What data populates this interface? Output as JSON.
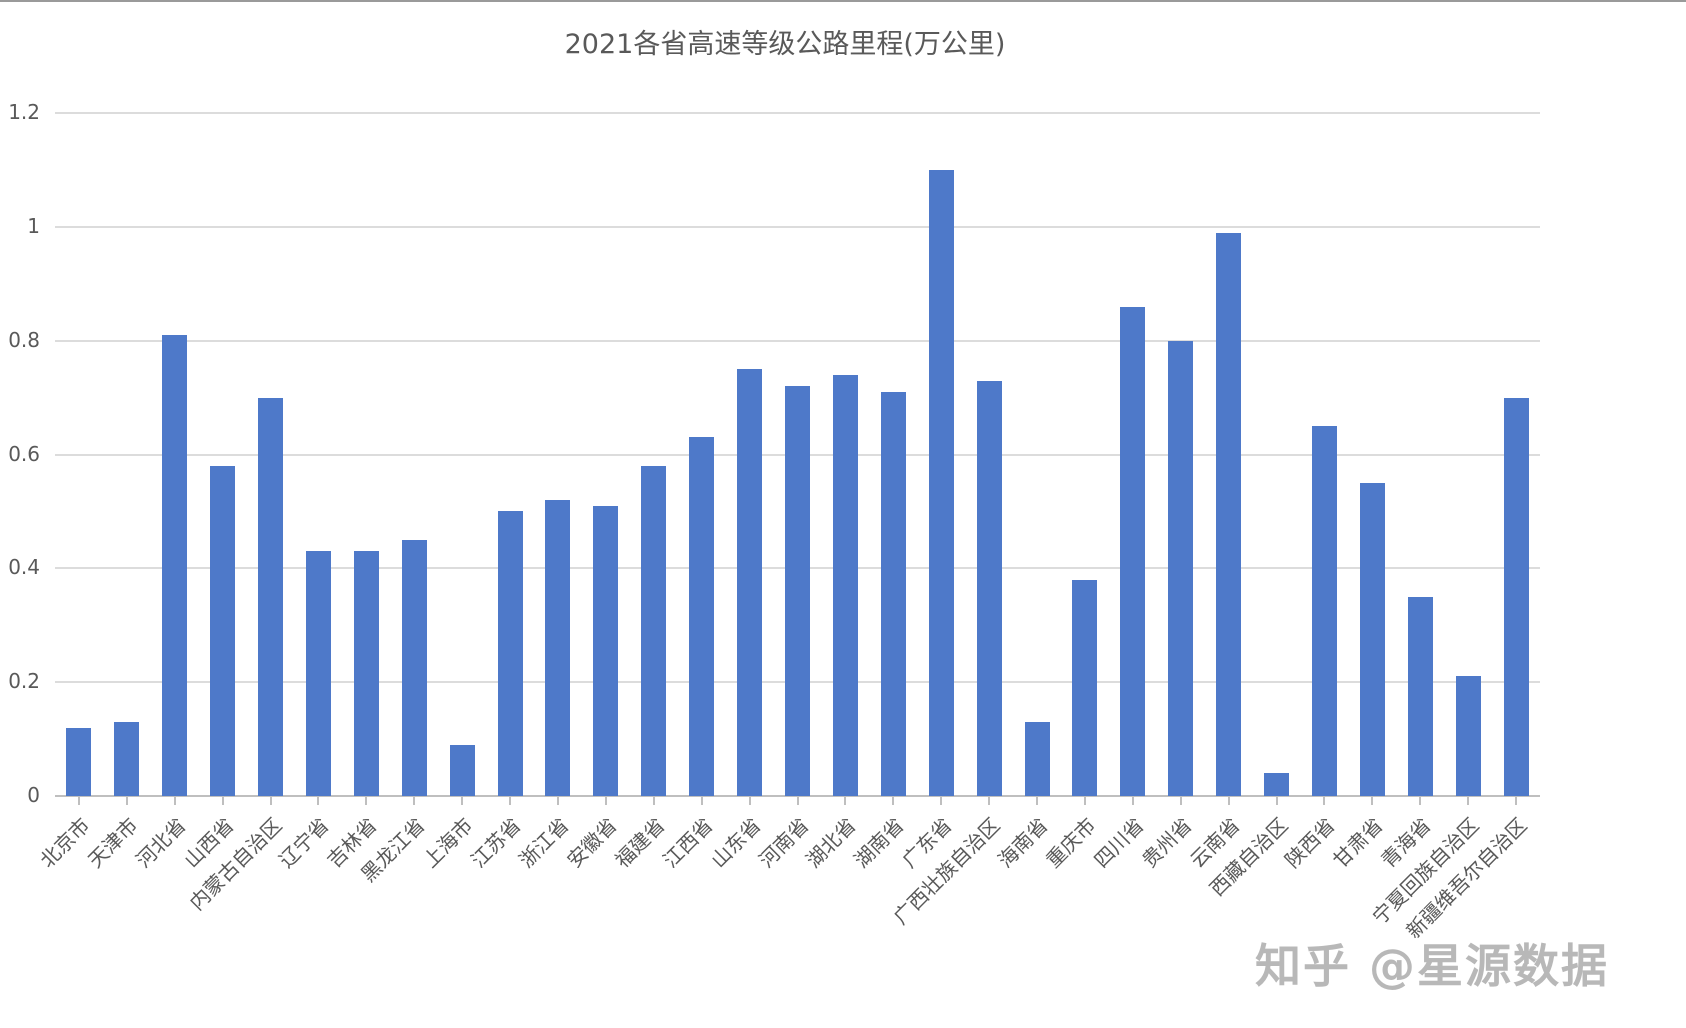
{
  "chart_data": {
    "type": "bar",
    "title": "2021各省高速等级公路里程(万公里)",
    "xlabel": "",
    "ylabel": "",
    "ylim": [
      0,
      1.2
    ],
    "yticks": [
      "0",
      "0.2",
      "0.4",
      "0.6",
      "0.8",
      "1",
      "1.2"
    ],
    "grid": true,
    "legend": "none",
    "color": "#4e79c9",
    "categories": [
      "北京市",
      "天津市",
      "河北省",
      "山西省",
      "内蒙古自治区",
      "辽宁省",
      "吉林省",
      "黑龙江省",
      "上海市",
      "江苏省",
      "浙江省",
      "安徽省",
      "福建省",
      "江西省",
      "山东省",
      "河南省",
      "湖北省",
      "湖南省",
      "广东省",
      "广西壮族自治区",
      "海南省",
      "重庆市",
      "四川省",
      "贵州省",
      "云南省",
      "西藏自治区",
      "陕西省",
      "甘肃省",
      "青海省",
      "宁夏回族自治区",
      "新疆维吾尔自治区"
    ],
    "values": [
      0.12,
      0.13,
      0.81,
      0.58,
      0.7,
      0.43,
      0.43,
      0.45,
      0.09,
      0.5,
      0.52,
      0.51,
      0.58,
      0.63,
      0.75,
      0.72,
      0.74,
      0.71,
      1.1,
      0.73,
      0.13,
      0.38,
      0.86,
      0.8,
      0.99,
      0.04,
      0.65,
      0.55,
      0.35,
      0.21,
      0.7
    ]
  },
  "watermark": "知乎 @星源数据"
}
